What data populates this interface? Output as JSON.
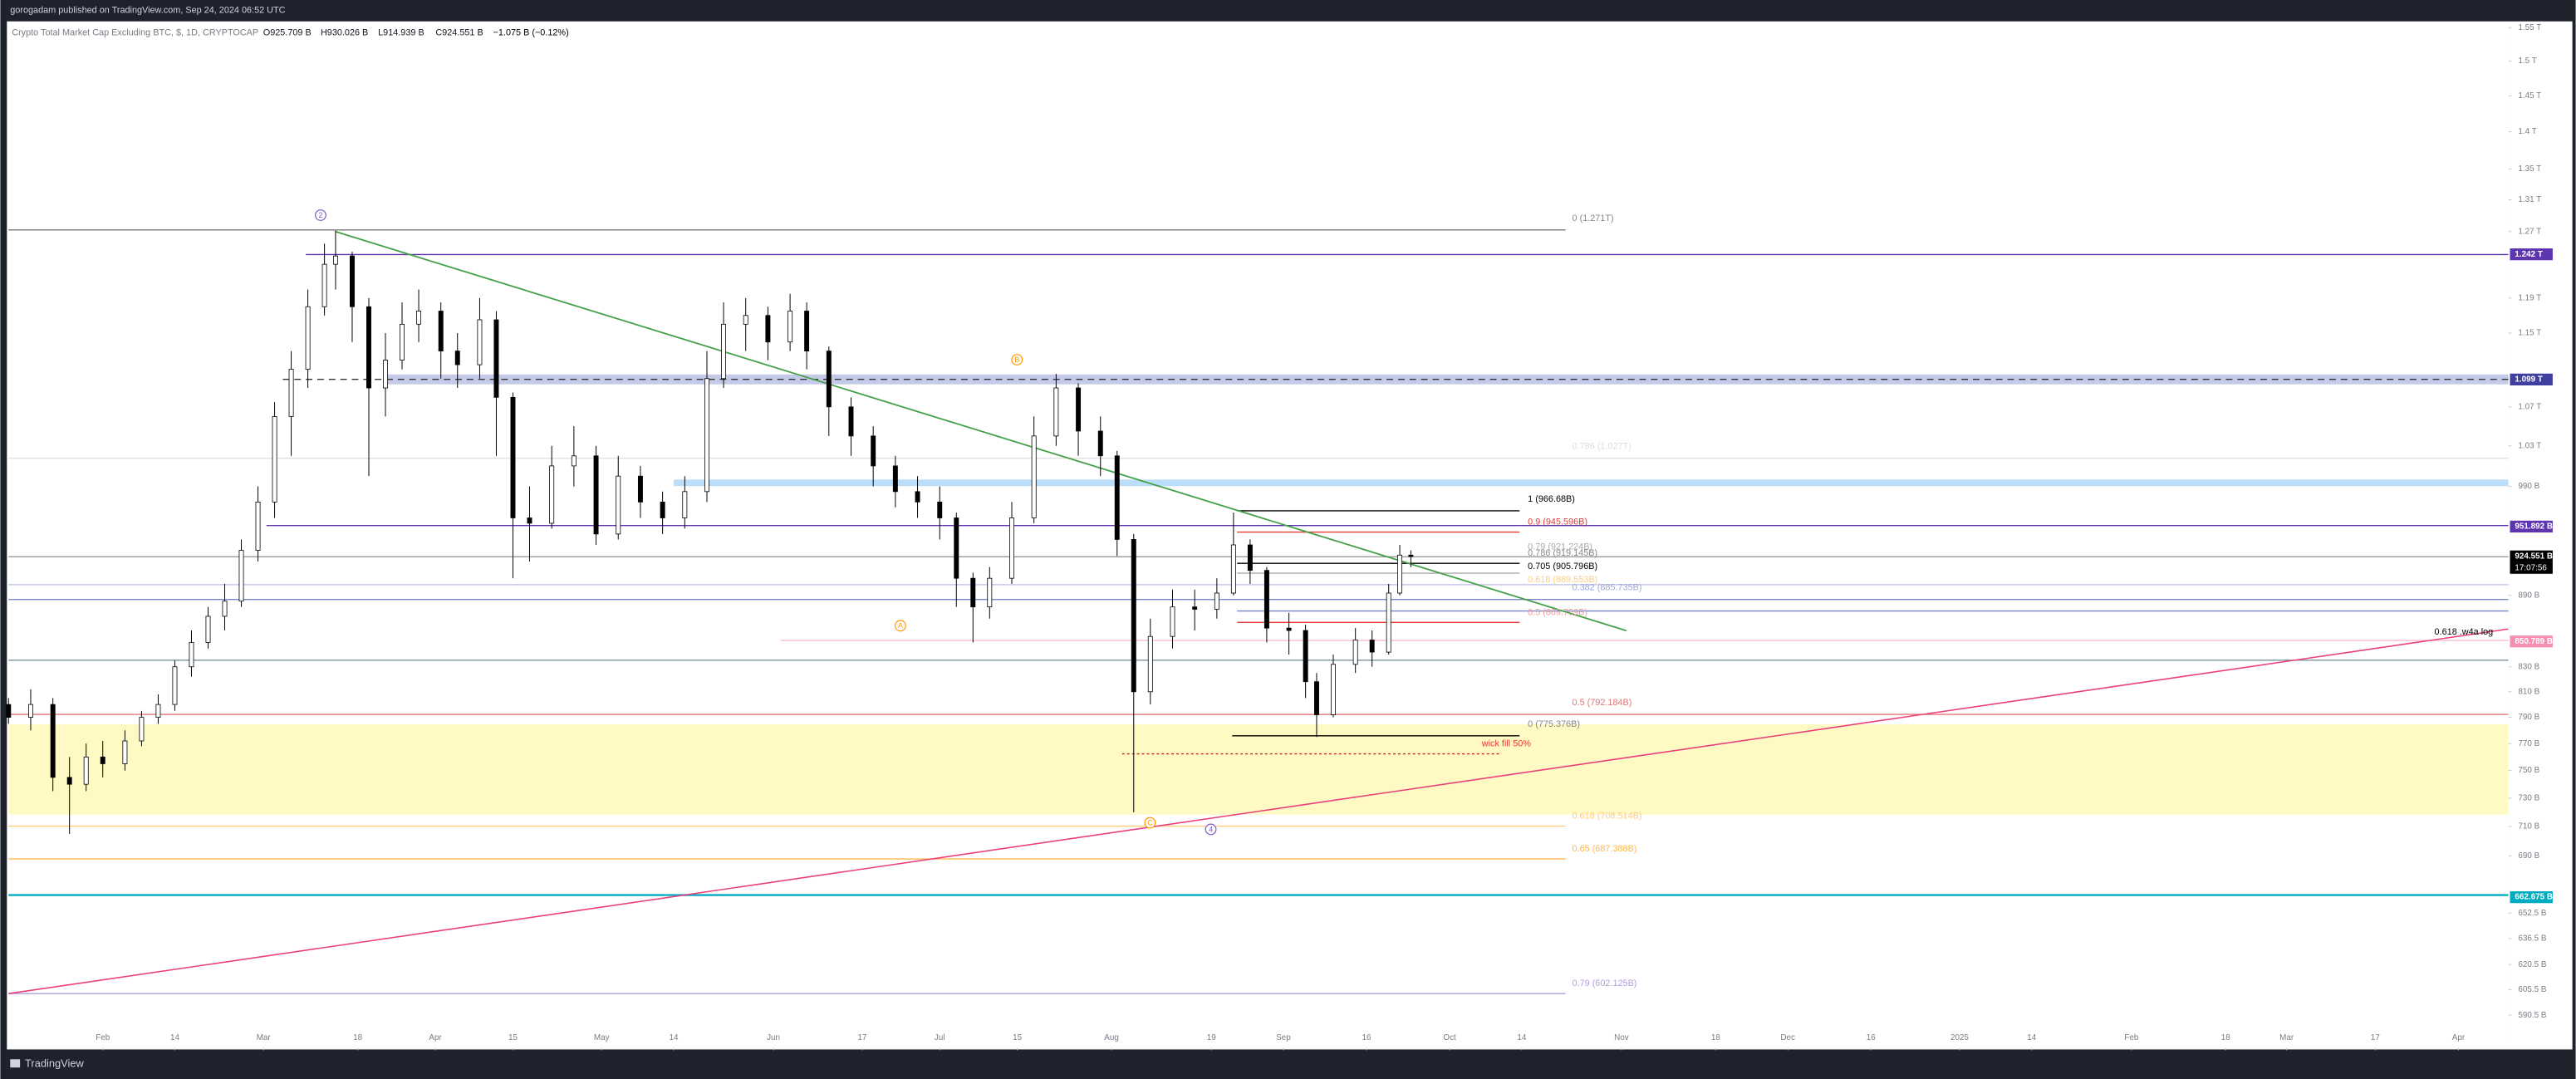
{
  "header": {
    "published": "gorogadam published on TradingView.com, Sep 24, 2024 06:52 UTC",
    "footer": "TradingView"
  },
  "legend": [
    "Crypto Total Market Cap Excluding BTC, $, 1D, CRYPTOCAP",
    "O925.709 B",
    "H930.026 B",
    "L914.939 B",
    "C924.551 B",
    "−1.075 B (−0.12%)"
  ],
  "chart_data": {
    "type": "candlestick",
    "log_scale": true,
    "up_color": "#ffffff",
    "down_color": "#000000",
    "x": [
      "2024-01-15",
      "2024-01-19",
      "2024-01-23",
      "2024-01-26",
      "2024-01-29",
      "2024-02-01",
      "2024-02-05",
      "2024-02-08",
      "2024-02-11",
      "2024-02-14",
      "2024-02-17",
      "2024-02-20",
      "2024-02-23",
      "2024-02-26",
      "2024-02-29",
      "2024-03-03",
      "2024-03-06",
      "2024-03-09",
      "2024-03-12",
      "2024-03-14",
      "2024-03-17",
      "2024-03-20",
      "2024-03-23",
      "2024-03-26",
      "2024-03-29",
      "2024-04-02",
      "2024-04-05",
      "2024-04-09",
      "2024-04-12",
      "2024-04-15",
      "2024-04-18",
      "2024-04-22",
      "2024-04-26",
      "2024-04-30",
      "2024-05-04",
      "2024-05-08",
      "2024-05-12",
      "2024-05-16",
      "2024-05-20",
      "2024-05-23",
      "2024-05-27",
      "2024-05-31",
      "2024-06-04",
      "2024-06-07",
      "2024-06-11",
      "2024-06-15",
      "2024-06-19",
      "2024-06-23",
      "2024-06-27",
      "2024-07-01",
      "2024-07-04",
      "2024-07-07",
      "2024-07-10",
      "2024-07-14",
      "2024-07-18",
      "2024-07-22",
      "2024-07-26",
      "2024-07-30",
      "2024-08-02",
      "2024-08-05",
      "2024-08-08",
      "2024-08-12",
      "2024-08-16",
      "2024-08-20",
      "2024-08-23",
      "2024-08-26",
      "2024-08-29",
      "2024-09-02",
      "2024-09-05",
      "2024-09-07",
      "2024-09-10",
      "2024-09-14",
      "2024-09-17",
      "2024-09-20",
      "2024-09-22",
      "2024-09-24"
    ],
    "open": [
      800,
      790,
      800,
      745,
      740,
      760,
      755,
      772,
      790,
      800,
      830,
      850,
      872,
      885,
      930,
      975,
      1060,
      1110,
      1180,
      1230,
      1240,
      1180,
      1090,
      1120,
      1160,
      1175,
      1130,
      1115,
      1165,
      1080,
      960,
      955,
      1010,
      1020,
      945,
      1000,
      975,
      960,
      985,
      1100,
      1160,
      1170,
      1140,
      1175,
      1130,
      1070,
      1040,
      1010,
      985,
      975,
      960,
      905,
      880,
      905,
      960,
      1040,
      1090,
      1045,
      1020,
      940,
      810,
      855,
      880,
      878,
      892,
      935,
      912,
      862,
      860,
      818,
      792,
      832,
      852,
      842,
      892,
      925.709
    ],
    "high": [
      805,
      812,
      805,
      760,
      770,
      772,
      780,
      795,
      808,
      835,
      860,
      880,
      900,
      940,
      990,
      1075,
      1130,
      1200,
      1255,
      1271,
      1245,
      1190,
      1150,
      1185,
      1200,
      1185,
      1150,
      1190,
      1175,
      1085,
      990,
      1030,
      1050,
      1030,
      1020,
      1010,
      985,
      1000,
      1130,
      1185,
      1190,
      1180,
      1195,
      1185,
      1135,
      1080,
      1050,
      1020,
      1000,
      990,
      965,
      910,
      915,
      975,
      1060,
      1105,
      1095,
      1060,
      1025,
      945,
      870,
      895,
      895,
      905,
      965,
      940,
      915,
      875,
      865,
      825,
      840,
      862,
      860,
      900,
      935,
      930.026
    ],
    "low": [
      785,
      780,
      735,
      705,
      735,
      745,
      750,
      768,
      785,
      795,
      822,
      845,
      860,
      880,
      920,
      960,
      1020,
      1090,
      1170,
      1200,
      1140,
      1000,
      1060,
      1110,
      1140,
      1100,
      1090,
      1100,
      1020,
      905,
      920,
      950,
      990,
      935,
      940,
      960,
      945,
      950,
      975,
      1090,
      1130,
      1120,
      1130,
      1110,
      1040,
      1020,
      990,
      970,
      960,
      940,
      880,
      850,
      870,
      900,
      955,
      1030,
      1020,
      1000,
      925,
      720,
      800,
      845,
      860,
      870,
      890,
      900,
      850,
      840,
      805,
      775,
      790,
      825,
      830,
      840,
      890,
      914.939
    ],
    "close": [
      790,
      800,
      745,
      740,
      760,
      755,
      772,
      790,
      800,
      830,
      850,
      872,
      885,
      930,
      975,
      1060,
      1110,
      1180,
      1230,
      1240,
      1180,
      1090,
      1120,
      1160,
      1175,
      1130,
      1115,
      1165,
      1080,
      960,
      955,
      1010,
      1020,
      945,
      1000,
      975,
      960,
      985,
      1100,
      1160,
      1170,
      1140,
      1175,
      1130,
      1070,
      1040,
      1010,
      985,
      975,
      960,
      905,
      880,
      905,
      960,
      1040,
      1090,
      1045,
      1020,
      940,
      810,
      855,
      880,
      878,
      892,
      935,
      912,
      862,
      860,
      818,
      792,
      832,
      852,
      842,
      892,
      925.709,
      924.551
    ],
    "xlim": [
      "2024-01-15",
      "2025-04-10"
    ],
    "xticks": [
      {
        "value": "2024-02-01",
        "label": "Feb"
      },
      {
        "value": "2024-02-14",
        "label": "14"
      },
      {
        "value": "2024-03-01",
        "label": "Mar"
      },
      {
        "value": "2024-03-18",
        "label": "18"
      },
      {
        "value": "2024-04-01",
        "label": "Apr"
      },
      {
        "value": "2024-04-15",
        "label": "15"
      },
      {
        "value": "2024-05-01",
        "label": "May"
      },
      {
        "value": "2024-05-14",
        "label": "14"
      },
      {
        "value": "2024-06-01",
        "label": "Jun"
      },
      {
        "value": "2024-06-17",
        "label": "17"
      },
      {
        "value": "2024-07-01",
        "label": "Jul"
      },
      {
        "value": "2024-07-15",
        "label": "15"
      },
      {
        "value": "2024-08-01",
        "label": "Aug"
      },
      {
        "value": "2024-08-19",
        "label": "19"
      },
      {
        "value": "2024-09-01",
        "label": "Sep"
      },
      {
        "value": "2024-09-16",
        "label": "16"
      },
      {
        "value": "2024-10-01",
        "label": "Oct"
      },
      {
        "value": "2024-10-14",
        "label": "14"
      },
      {
        "value": "2024-11-01",
        "label": "Nov"
      },
      {
        "value": "2024-11-18",
        "label": "18"
      },
      {
        "value": "2024-12-01",
        "label": "Dec"
      },
      {
        "value": "2024-12-16",
        "label": "16"
      },
      {
        "value": "2025-01-01",
        "label": "2025"
      },
      {
        "value": "2025-01-14",
        "label": "14"
      },
      {
        "value": "2025-02-01",
        "label": "Feb"
      },
      {
        "value": "2025-02-18",
        "label": "18"
      },
      {
        "value": "2025-03-01",
        "label": "Mar"
      },
      {
        "value": "2025-03-17",
        "label": "17"
      },
      {
        "value": "2025-04-01",
        "label": "Apr"
      }
    ],
    "ylim": [
      572,
      1557
    ],
    "yticks": [
      {
        "value": 1550,
        "label": "1.55 T"
      },
      {
        "value": 1500,
        "label": "1.5 T"
      },
      {
        "value": 1450,
        "label": "1.45 T"
      },
      {
        "value": 1400,
        "label": "1.4 T"
      },
      {
        "value": 1350,
        "label": "1.35 T"
      },
      {
        "value": 1310,
        "label": "1.31 T"
      },
      {
        "value": 1270,
        "label": "1.27 T"
      },
      {
        "value": 1190,
        "label": "1.19 T"
      },
      {
        "value": 1150,
        "label": "1.15 T"
      },
      {
        "value": 1070,
        "label": "1.07 T"
      },
      {
        "value": 1030,
        "label": "1.03 T"
      },
      {
        "value": 990,
        "label": "990 B"
      },
      {
        "value": 890,
        "label": "890 B"
      },
      {
        "value": 830,
        "label": "830 B"
      },
      {
        "value": 810,
        "label": "810 B"
      },
      {
        "value": 790,
        "label": "790 B"
      },
      {
        "value": 770,
        "label": "770 B"
      },
      {
        "value": 750,
        "label": "750 B"
      },
      {
        "value": 730,
        "label": "730 B"
      },
      {
        "value": 710,
        "label": "710 B"
      },
      {
        "value": 690,
        "label": "690 B"
      },
      {
        "value": 652.5,
        "label": "652.5 B"
      },
      {
        "value": 636.5,
        "label": "636.5 B"
      },
      {
        "value": 620.5,
        "label": "620.5 B"
      },
      {
        "value": 605.5,
        "label": "605.5 B"
      },
      {
        "value": 590.5,
        "label": "590.5 B"
      }
    ],
    "price_labels": [
      {
        "value": 1242,
        "label": "1.242 T",
        "color": "#5e35b1"
      },
      {
        "value": 1099,
        "label": "1.099 T",
        "color": "#3f3f9f"
      },
      {
        "value": 951.892,
        "label": "951.892 B",
        "color": "#5e35b1"
      },
      {
        "value": 924.551,
        "label": "924.551 B",
        "color": "#000000"
      },
      {
        "value": 850.789,
        "label": "850.789 B",
        "color": "#f48fb1"
      },
      {
        "value": 662.675,
        "label": "662.675 B",
        "color": "#00acc1"
      }
    ],
    "countdown": "17:07:56",
    "annotations": [
      {
        "text": "0 (1.271T)",
        "color": "#888888"
      },
      {
        "text": "0.786 (1.027T)",
        "color": "#dddddd"
      },
      {
        "text": "1 (966.68B)",
        "color": "#000000"
      },
      {
        "text": "0.9 (945.596B)",
        "color": "#e53935"
      },
      {
        "text": "0.79 (921.224B)",
        "color": "#aaaaaa"
      },
      {
        "text": "0.786 (919.145B)",
        "color": "#888888"
      },
      {
        "text": "0.705 (905.796B)",
        "color": "#000000"
      },
      {
        "text": "0.618 (889.553B)",
        "color": "#ffcc80"
      },
      {
        "text": "0.382 (885.735B)",
        "color": "#9fa8da"
      },
      {
        "text": "0.5 (869.759B)",
        "color": "#ef9a9a"
      },
      {
        "text": "0.5 (792.184B)",
        "color": "#e57373"
      },
      {
        "text": "0 (775.376B)",
        "color": "#888888"
      },
      {
        "text": "wick fill 50%",
        "color": "#e53935"
      },
      {
        "text": "0.618 (708.514B)",
        "color": "#ffcc80"
      },
      {
        "text": "0.65 (687.388B)",
        "color": "#ffb74d"
      },
      {
        "text": "0.79 (602.125B)",
        "color": "#b39ddb"
      },
      {
        "text": "0.618 .w4a log",
        "color": "#000000"
      }
    ],
    "waves": [
      {
        "text": "2",
        "color": "#7e57c2"
      },
      {
        "text": "B",
        "color": "#ff9800"
      },
      {
        "text": "A",
        "color": "#ff9800"
      },
      {
        "text": "C",
        "color": "#ff9800"
      },
      {
        "text": "4",
        "color": "#7e57c2"
      }
    ]
  }
}
